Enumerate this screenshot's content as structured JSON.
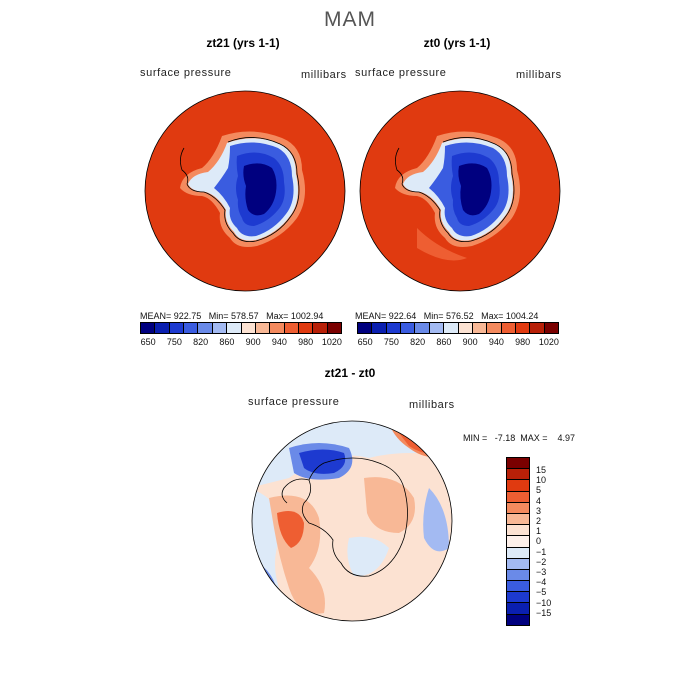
{
  "figure": {
    "title": "MAM"
  },
  "panels": [
    {
      "title": "zt21 (yrs 1-1)",
      "variable": "surface pressure",
      "units": "millibars",
      "stats": "MEAN= 922.75   Min= 578.57   Max= 1002.94"
    },
    {
      "title": "zt0 (yrs 1-1)",
      "variable": "surface pressure",
      "units": "millibars",
      "stats": "MEAN= 922.64   Min= 576.52   Max= 1004.24"
    },
    {
      "title": "zt21 - zt0",
      "variable": "surface pressure",
      "units": "millibars",
      "stats": "MIN =   -7.18  MAX =    4.97"
    }
  ],
  "colorbar_abs": {
    "colors": [
      "#00007f",
      "#0a1fb0",
      "#1d3ad0",
      "#3a5ce0",
      "#6a8ae8",
      "#a3baf2",
      "#ddeaf8",
      "#fce2d2",
      "#f8b896",
      "#f48a5e",
      "#ee5e32",
      "#e03a10",
      "#b82008",
      "#7a0000"
    ],
    "tick_labels": [
      "650",
      "750",
      "820",
      "860",
      "900",
      "940",
      "980",
      "1020"
    ]
  },
  "colorbar_diff": {
    "colors": [
      "#7a0000",
      "#b82008",
      "#e03a10",
      "#ee5e32",
      "#f48a5e",
      "#f8b896",
      "#fce2d2",
      "#fdf0ea",
      "#ddeaf8",
      "#a3baf2",
      "#6a8ae8",
      "#3a5ce0",
      "#1d3ad0",
      "#0a1fb0",
      "#00007f"
    ],
    "tick_labels": [
      "15",
      "10",
      "5",
      "4",
      "3",
      "2",
      "1",
      "0",
      "−1",
      "−2",
      "−3",
      "−4",
      "−5",
      "−10",
      "−15"
    ]
  }
}
